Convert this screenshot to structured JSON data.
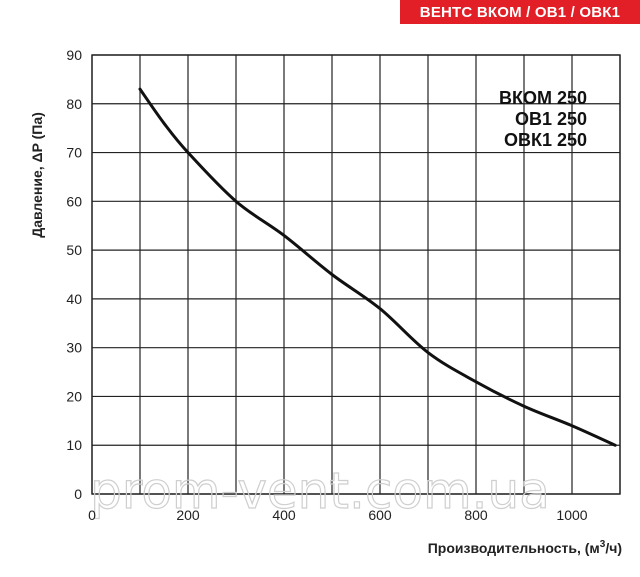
{
  "header": {
    "title": "ВЕНТС ВКОМ / ОВ1 / ОВК1"
  },
  "watermark": "prom-vent.com.ua",
  "chart_data": {
    "type": "line",
    "ylabel": "Давление, ΔP (Па)",
    "xlabel": "Производительность, (м³/ч)",
    "xlim": [
      0,
      1100
    ],
    "ylim": [
      0,
      90
    ],
    "x_ticks": [
      0,
      200,
      400,
      600,
      800,
      1000
    ],
    "y_ticks": [
      0,
      10,
      20,
      30,
      40,
      50,
      60,
      70,
      80,
      90
    ],
    "grid": true,
    "model_labels": [
      "ВКОМ 250",
      "ОВ1 250",
      "ОВК1 250"
    ],
    "series": [
      {
        "values": [
          [
            100,
            83
          ],
          [
            150,
            76
          ],
          [
            200,
            70
          ],
          [
            300,
            60
          ],
          [
            400,
            53
          ],
          [
            500,
            45
          ],
          [
            600,
            38
          ],
          [
            700,
            29
          ],
          [
            800,
            23
          ],
          [
            900,
            18
          ],
          [
            1000,
            14
          ],
          [
            1090,
            10
          ]
        ]
      }
    ],
    "colors": {
      "line": "#111111",
      "grid": "#222222",
      "banner": "#e21e26"
    }
  }
}
